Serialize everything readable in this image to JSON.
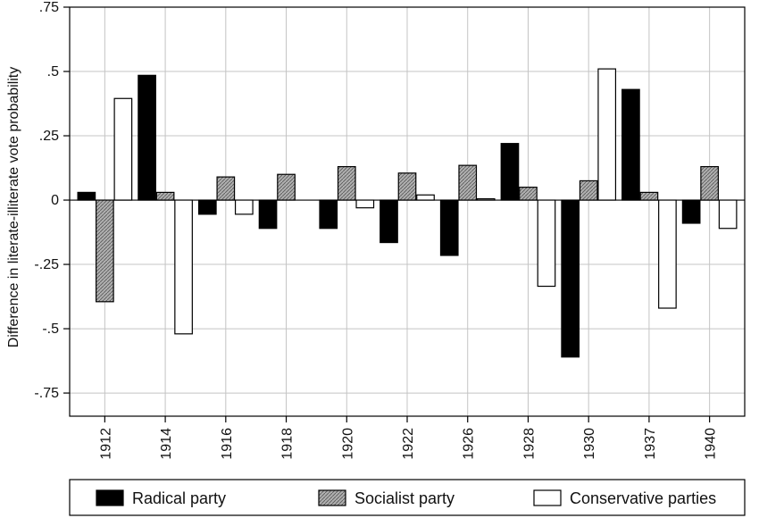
{
  "chart_data": {
    "type": "bar",
    "ylabel": "Difference in literate-illiterate vote probability",
    "xlabel": "",
    "ylim": [
      -0.84,
      0.75
    ],
    "yticks": [
      {
        "value": 0.75,
        "label": ".75"
      },
      {
        "value": 0.5,
        "label": ".5"
      },
      {
        "value": 0.25,
        "label": ".25"
      },
      {
        "value": 0,
        "label": "0"
      },
      {
        "value": -0.25,
        "label": "-.25"
      },
      {
        "value": -0.5,
        "label": "-.5"
      },
      {
        "value": -0.75,
        "label": "-.75"
      }
    ],
    "grid": true,
    "legend_position": "bottom",
    "categories": [
      "1912",
      "1914",
      "1916",
      "1918",
      "1920",
      "1922",
      "1926",
      "1928",
      "1930",
      "1937",
      "1940"
    ],
    "series": [
      {
        "name": "Radical party",
        "fill": "#000000",
        "values": [
          0.03,
          0.485,
          -0.055,
          -0.11,
          -0.11,
          -0.165,
          -0.215,
          0.22,
          -0.61,
          0.43,
          -0.09
        ]
      },
      {
        "name": "Socialist party",
        "fill": "#a9a9a9",
        "values": [
          -0.395,
          0.03,
          0.09,
          0.1,
          0.13,
          0.105,
          0.135,
          0.05,
          0.075,
          0.03,
          0.13
        ]
      },
      {
        "name": "Conservative parties",
        "fill": "#ffffff",
        "values": [
          0.395,
          -0.52,
          -0.055,
          0,
          -0.03,
          0.02,
          0.005,
          -0.335,
          0.51,
          -0.42,
          -0.11
        ]
      }
    ]
  }
}
